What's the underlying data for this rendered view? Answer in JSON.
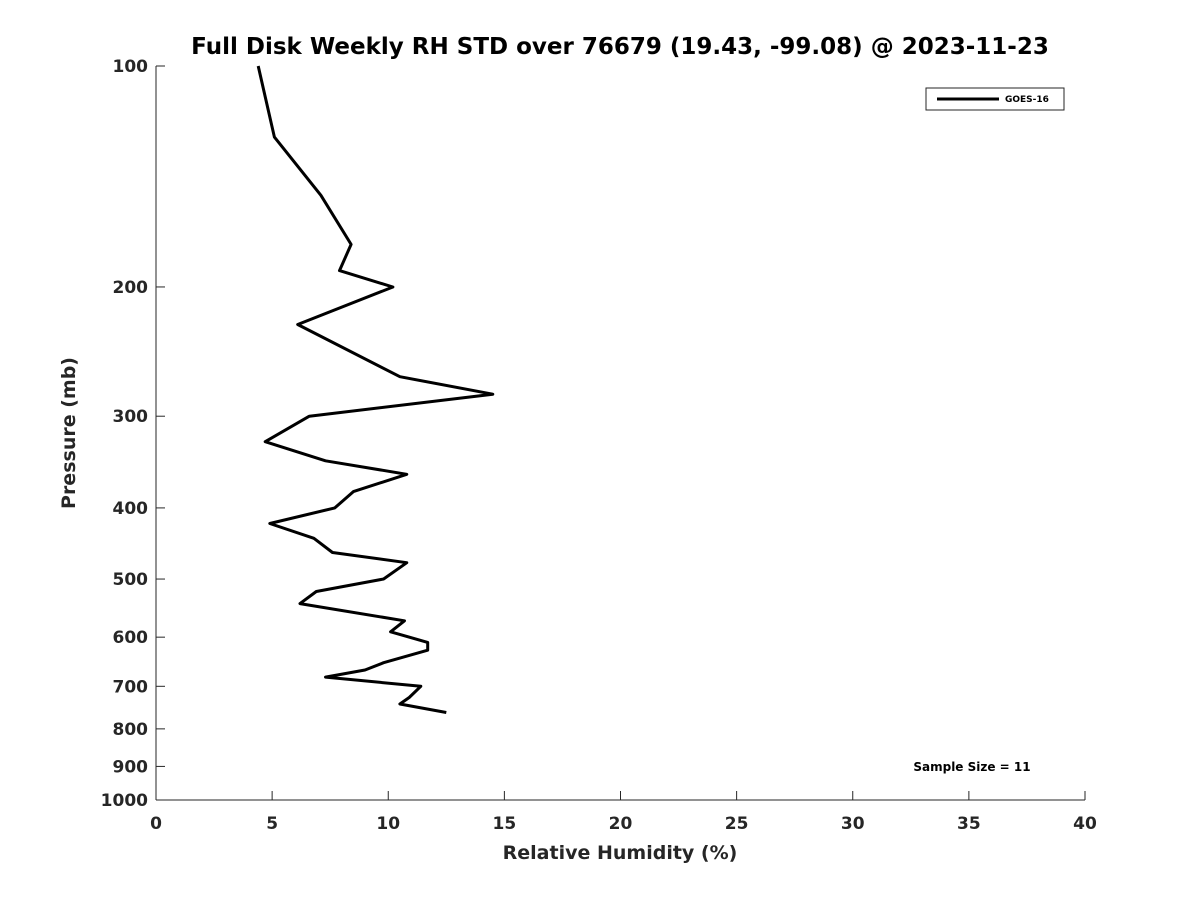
{
  "chart_data": {
    "type": "line",
    "title": "Full Disk Weekly RH STD over 76679 (19.43, -99.08) @ 2023-11-23",
    "xlabel": "Relative Humidity (%)",
    "ylabel": "Pressure (mb)",
    "xlim": [
      0,
      40
    ],
    "ylim": [
      100,
      1000
    ],
    "y_scale": "log",
    "y_reversed": true,
    "x_ticks": [
      "0",
      "5",
      "10",
      "15",
      "20",
      "25",
      "30",
      "35",
      "40"
    ],
    "y_ticks": [
      "100",
      "200",
      "300",
      "400",
      "500",
      "600",
      "700",
      "800",
      "900",
      "1000"
    ],
    "grid": false,
    "legend_position": "top-right",
    "series": [
      {
        "name": "GOES-16",
        "color": "#000000",
        "points": [
          [
            4.4,
            100
          ],
          [
            5.1,
            125
          ],
          [
            7.1,
            150
          ],
          [
            8.4,
            175
          ],
          [
            7.9,
            190
          ],
          [
            10.2,
            200
          ],
          [
            6.1,
            225
          ],
          [
            10.5,
            265
          ],
          [
            14.5,
            280
          ],
          [
            6.6,
            300
          ],
          [
            4.7,
            325
          ],
          [
            7.3,
            345
          ],
          [
            10.8,
            360
          ],
          [
            8.5,
            380
          ],
          [
            7.7,
            400
          ],
          [
            4.9,
            420
          ],
          [
            6.8,
            440
          ],
          [
            7.6,
            460
          ],
          [
            10.8,
            475
          ],
          [
            9.8,
            500
          ],
          [
            6.9,
            520
          ],
          [
            6.2,
            540
          ],
          [
            10.7,
            570
          ],
          [
            10.1,
            590
          ],
          [
            11.7,
            610
          ],
          [
            11.7,
            625
          ],
          [
            9.8,
            650
          ],
          [
            9.0,
            665
          ],
          [
            7.3,
            680
          ],
          [
            11.4,
            700
          ],
          [
            10.9,
            725
          ],
          [
            10.5,
            740
          ],
          [
            12.5,
            760
          ]
        ]
      }
    ],
    "annotations": [
      "Sample Size = 11"
    ]
  }
}
